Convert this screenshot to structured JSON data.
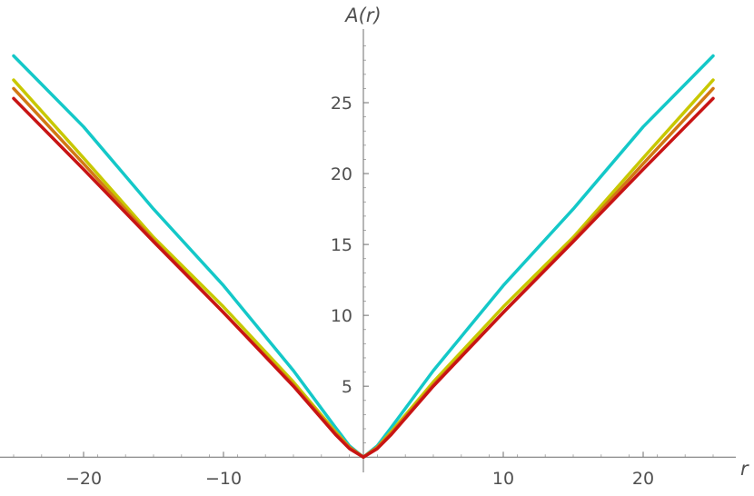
{
  "chart_data": {
    "type": "line",
    "xlabel": "r",
    "ylabel": "A(r)",
    "xlim": [
      -25,
      25
    ],
    "ylim": [
      -0.5,
      30
    ],
    "x_ticks": [
      -20,
      -10,
      10,
      20
    ],
    "x_tick_labels": [
      "−20",
      "−10",
      "10",
      "20"
    ],
    "y_ticks": [
      5,
      10,
      15,
      20,
      25
    ],
    "y_tick_labels": [
      "5",
      "10",
      "15",
      "20",
      "25"
    ],
    "grid": false,
    "legend": "none",
    "series": [
      {
        "color": "#14c8c8",
        "points": [
          [
            -25,
            28.3
          ],
          [
            -20,
            23.3
          ],
          [
            -15,
            17.5
          ],
          [
            -10,
            12.1
          ],
          [
            -5,
            6.1
          ],
          [
            -2,
            2.1
          ],
          [
            -1,
            0.8
          ],
          [
            0,
            0
          ],
          [
            1,
            0.8
          ],
          [
            2,
            2.1
          ],
          [
            5,
            6.1
          ],
          [
            10,
            12.1
          ],
          [
            15,
            17.5
          ],
          [
            20,
            23.3
          ],
          [
            25,
            28.3
          ]
        ]
      },
      {
        "color": "#c8c800",
        "points": [
          [
            -25,
            26.6
          ],
          [
            -20,
            21.1
          ],
          [
            -15,
            15.5
          ],
          [
            -10,
            10.6
          ],
          [
            -5,
            5.3
          ],
          [
            -2,
            1.8
          ],
          [
            -1,
            0.7
          ],
          [
            0,
            0
          ],
          [
            1,
            0.7
          ],
          [
            2,
            1.8
          ],
          [
            5,
            5.3
          ],
          [
            10,
            10.6
          ],
          [
            15,
            15.5
          ],
          [
            20,
            21.1
          ],
          [
            25,
            26.6
          ]
        ]
      },
      {
        "color": "#d27814",
        "points": [
          [
            -25,
            26.0
          ],
          [
            -20,
            20.7
          ],
          [
            -15,
            15.3
          ],
          [
            -10,
            10.2
          ],
          [
            -5,
            5.1
          ],
          [
            -2,
            1.7
          ],
          [
            -1,
            0.7
          ],
          [
            0,
            0
          ],
          [
            1,
            0.7
          ],
          [
            2,
            1.7
          ],
          [
            5,
            5.1
          ],
          [
            10,
            10.2
          ],
          [
            15,
            15.3
          ],
          [
            20,
            20.7
          ],
          [
            25,
            26.0
          ]
        ]
      },
      {
        "color": "#c81414",
        "points": [
          [
            -25,
            25.3
          ],
          [
            -20,
            20.3
          ],
          [
            -15,
            15.2
          ],
          [
            -10,
            10.2
          ],
          [
            -5,
            5.0
          ],
          [
            -2,
            1.6
          ],
          [
            -1,
            0.6
          ],
          [
            0,
            0
          ],
          [
            1,
            0.6
          ],
          [
            2,
            1.6
          ],
          [
            5,
            5.0
          ],
          [
            10,
            10.2
          ],
          [
            15,
            15.2
          ],
          [
            20,
            20.3
          ],
          [
            25,
            25.3
          ]
        ]
      }
    ]
  }
}
